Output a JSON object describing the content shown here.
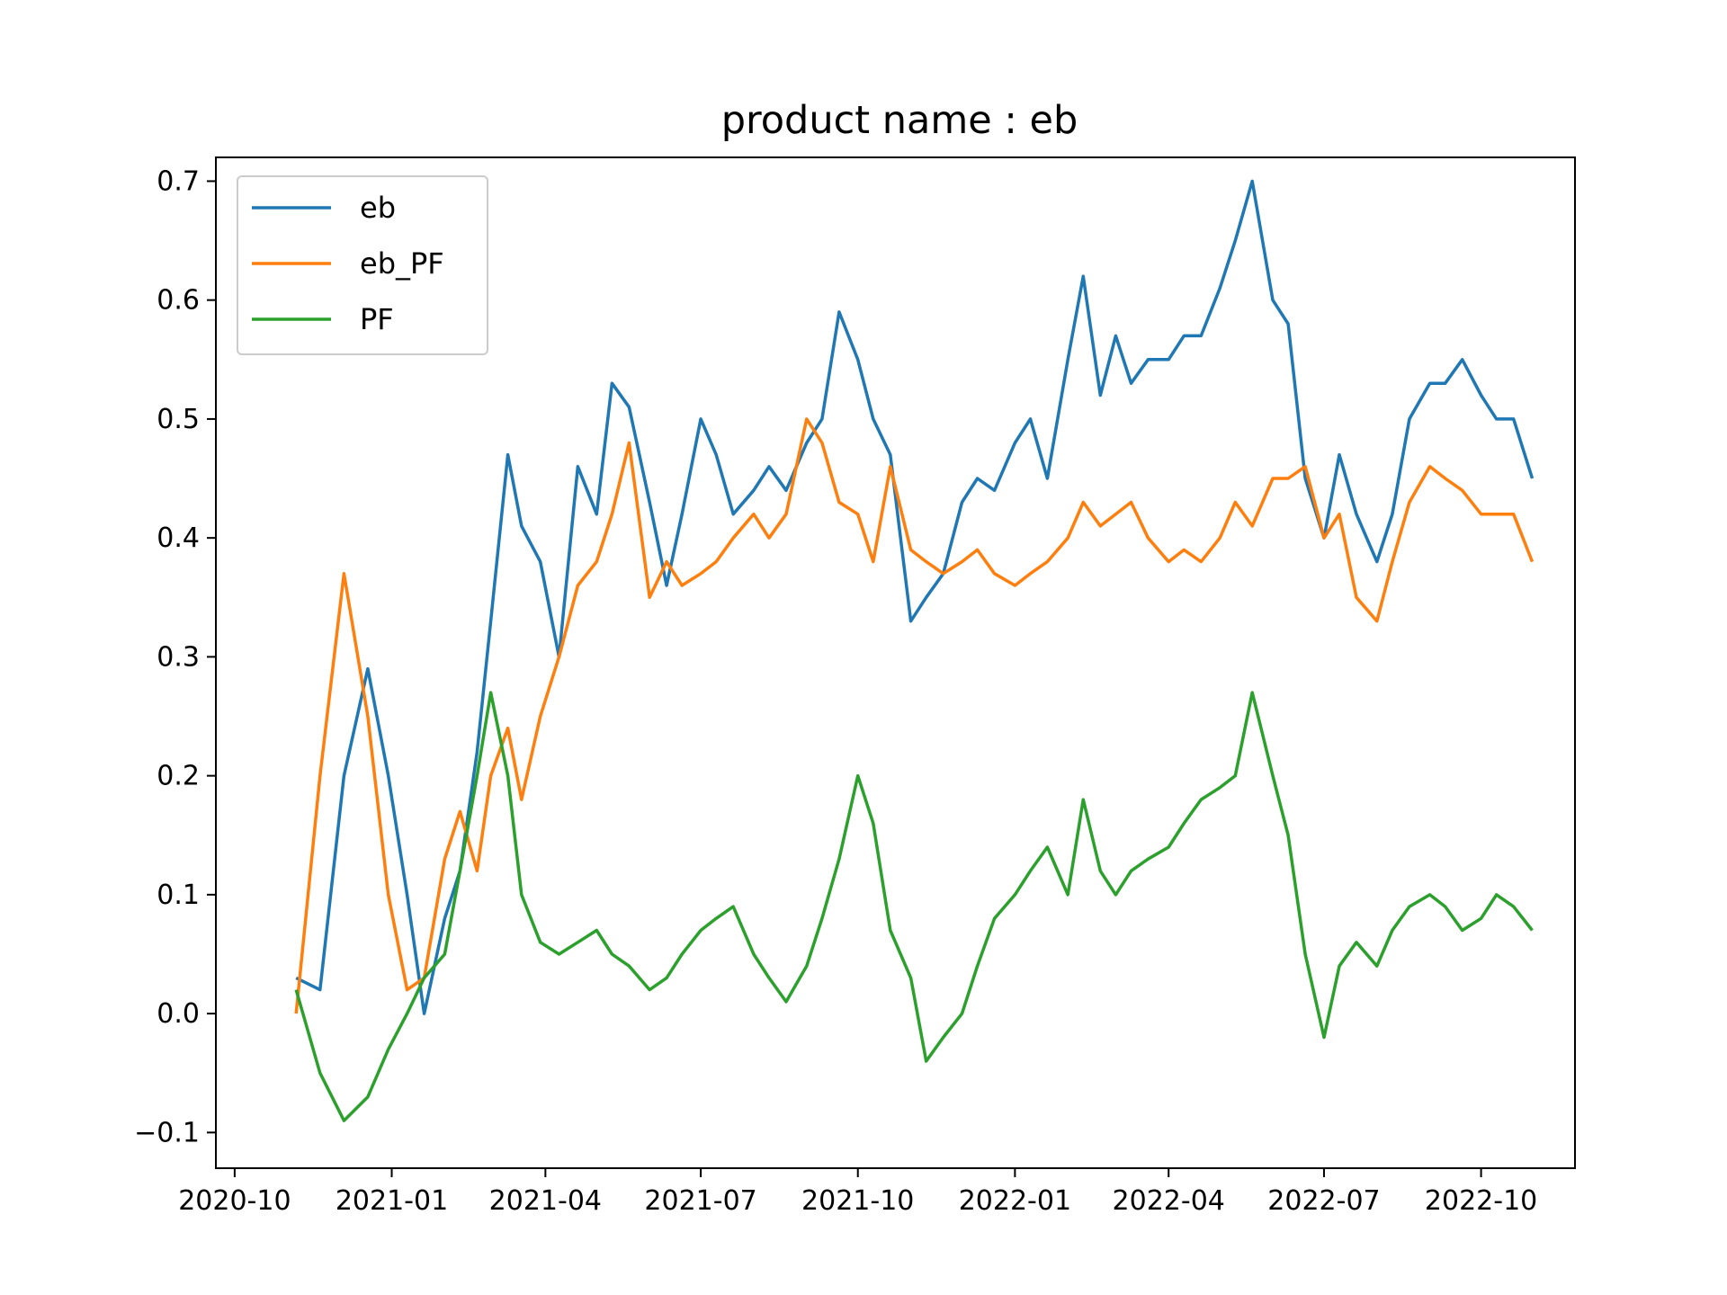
{
  "chart_data": {
    "type": "line",
    "title": "product name :    eb",
    "xlabel": "",
    "ylabel": "",
    "x_tick_labels": [
      "2020-10",
      "2021-01",
      "2021-04",
      "2021-07",
      "2021-10",
      "2022-01",
      "2022-04",
      "2022-07",
      "2022-10"
    ],
    "y_tick_labels": [
      "−0.1",
      "0.0",
      "0.1",
      "0.2",
      "0.3",
      "0.4",
      "0.5",
      "0.6",
      "0.7"
    ],
    "ylim": [
      -0.13,
      0.72
    ],
    "xlim": [
      "2020-09-20",
      "2022-11-25"
    ],
    "legend_position": "upper left",
    "colors": {
      "eb": "#1f77b4",
      "eb_PF": "#ff7f0e",
      "PF": "#2ca02c"
    },
    "series": [
      {
        "name": "eb",
        "x": [
          "2020-11-06",
          "2020-11-20",
          "2020-12-04",
          "2020-12-18",
          "2020-12-30",
          "2021-01-10",
          "2021-01-20",
          "2021-02-01",
          "2021-02-10",
          "2021-02-20",
          "2021-02-28",
          "2021-03-10",
          "2021-03-18",
          "2021-03-29",
          "2021-04-09",
          "2021-04-20",
          "2021-05-01",
          "2021-05-10",
          "2021-05-20",
          "2021-06-01",
          "2021-06-11",
          "2021-06-20",
          "2021-07-01",
          "2021-07-10",
          "2021-07-20",
          "2021-08-01",
          "2021-08-10",
          "2021-08-20",
          "2021-09-01",
          "2021-09-10",
          "2021-09-20",
          "2021-10-01",
          "2021-10-10",
          "2021-10-20",
          "2021-11-01",
          "2021-11-10",
          "2021-11-20",
          "2021-12-01",
          "2021-12-10",
          "2021-12-20",
          "2022-01-01",
          "2022-01-10",
          "2022-01-20",
          "2022-02-01",
          "2022-02-10",
          "2022-02-20",
          "2022-03-01",
          "2022-03-10",
          "2022-03-20",
          "2022-04-01",
          "2022-04-10",
          "2022-04-20",
          "2022-05-01",
          "2022-05-10",
          "2022-05-20",
          "2022-06-01",
          "2022-06-10",
          "2022-06-20",
          "2022-07-01",
          "2022-07-10",
          "2022-07-20",
          "2022-08-01",
          "2022-08-10",
          "2022-08-20",
          "2022-09-01",
          "2022-09-10",
          "2022-09-20",
          "2022-10-01",
          "2022-10-10",
          "2022-10-20",
          "2022-10-31"
        ],
        "values": [
          0.03,
          0.02,
          0.2,
          0.29,
          0.2,
          0.1,
          0.0,
          0.08,
          0.12,
          0.22,
          0.33,
          0.47,
          0.41,
          0.38,
          0.3,
          0.46,
          0.42,
          0.53,
          0.51,
          0.43,
          0.36,
          0.42,
          0.5,
          0.47,
          0.42,
          0.44,
          0.46,
          0.44,
          0.48,
          0.5,
          0.59,
          0.55,
          0.5,
          0.47,
          0.33,
          0.35,
          0.37,
          0.43,
          0.45,
          0.44,
          0.48,
          0.5,
          0.45,
          0.55,
          0.62,
          0.52,
          0.57,
          0.53,
          0.55,
          0.55,
          0.57,
          0.57,
          0.61,
          0.65,
          0.7,
          0.6,
          0.58,
          0.45,
          0.4,
          0.47,
          0.42,
          0.38,
          0.42,
          0.5,
          0.53,
          0.53,
          0.55,
          0.52,
          0.5,
          0.5,
          0.45
        ]
      },
      {
        "name": "eb_PF",
        "x": [
          "2020-11-06",
          "2020-11-20",
          "2020-12-04",
          "2020-12-18",
          "2020-12-30",
          "2021-01-10",
          "2021-01-20",
          "2021-02-01",
          "2021-02-10",
          "2021-02-20",
          "2021-02-28",
          "2021-03-10",
          "2021-03-18",
          "2021-03-29",
          "2021-04-09",
          "2021-04-20",
          "2021-05-01",
          "2021-05-10",
          "2021-05-20",
          "2021-06-01",
          "2021-06-11",
          "2021-06-20",
          "2021-07-01",
          "2021-07-10",
          "2021-07-20",
          "2021-08-01",
          "2021-08-10",
          "2021-08-20",
          "2021-09-01",
          "2021-09-10",
          "2021-09-20",
          "2021-10-01",
          "2021-10-10",
          "2021-10-20",
          "2021-11-01",
          "2021-11-10",
          "2021-11-20",
          "2021-12-01",
          "2021-12-10",
          "2021-12-20",
          "2022-01-01",
          "2022-01-10",
          "2022-01-20",
          "2022-02-01",
          "2022-02-10",
          "2022-02-20",
          "2022-03-01",
          "2022-03-10",
          "2022-03-20",
          "2022-04-01",
          "2022-04-10",
          "2022-04-20",
          "2022-05-01",
          "2022-05-10",
          "2022-05-20",
          "2022-06-01",
          "2022-06-10",
          "2022-06-20",
          "2022-07-01",
          "2022-07-10",
          "2022-07-20",
          "2022-08-01",
          "2022-08-10",
          "2022-08-20",
          "2022-09-01",
          "2022-09-10",
          "2022-09-20",
          "2022-10-01",
          "2022-10-10",
          "2022-10-20",
          "2022-10-31"
        ],
        "values": [
          0.0,
          0.2,
          0.37,
          0.25,
          0.1,
          0.02,
          0.03,
          0.13,
          0.17,
          0.12,
          0.2,
          0.24,
          0.18,
          0.25,
          0.3,
          0.36,
          0.38,
          0.42,
          0.48,
          0.35,
          0.38,
          0.36,
          0.37,
          0.38,
          0.4,
          0.42,
          0.4,
          0.42,
          0.5,
          0.48,
          0.43,
          0.42,
          0.38,
          0.46,
          0.39,
          0.38,
          0.37,
          0.38,
          0.39,
          0.37,
          0.36,
          0.37,
          0.38,
          0.4,
          0.43,
          0.41,
          0.42,
          0.43,
          0.4,
          0.38,
          0.39,
          0.38,
          0.4,
          0.43,
          0.41,
          0.45,
          0.45,
          0.46,
          0.4,
          0.42,
          0.35,
          0.33,
          0.38,
          0.43,
          0.46,
          0.45,
          0.44,
          0.42,
          0.42,
          0.42,
          0.38
        ]
      },
      {
        "name": "PF",
        "x": [
          "2020-11-06",
          "2020-11-20",
          "2020-12-04",
          "2020-12-18",
          "2020-12-30",
          "2021-01-10",
          "2021-01-20",
          "2021-02-01",
          "2021-02-10",
          "2021-02-20",
          "2021-02-28",
          "2021-03-10",
          "2021-03-18",
          "2021-03-29",
          "2021-04-09",
          "2021-04-20",
          "2021-05-01",
          "2021-05-10",
          "2021-05-20",
          "2021-06-01",
          "2021-06-11",
          "2021-06-20",
          "2021-07-01",
          "2021-07-10",
          "2021-07-20",
          "2021-08-01",
          "2021-08-10",
          "2021-08-20",
          "2021-09-01",
          "2021-09-10",
          "2021-09-20",
          "2021-10-01",
          "2021-10-10",
          "2021-10-20",
          "2021-11-01",
          "2021-11-10",
          "2021-11-20",
          "2021-12-01",
          "2021-12-10",
          "2021-12-20",
          "2022-01-01",
          "2022-01-10",
          "2022-01-20",
          "2022-02-01",
          "2022-02-10",
          "2022-02-20",
          "2022-03-01",
          "2022-03-10",
          "2022-03-20",
          "2022-04-01",
          "2022-04-10",
          "2022-04-20",
          "2022-05-01",
          "2022-05-10",
          "2022-05-20",
          "2022-06-01",
          "2022-06-10",
          "2022-06-20",
          "2022-07-01",
          "2022-07-10",
          "2022-07-20",
          "2022-08-01",
          "2022-08-10",
          "2022-08-20",
          "2022-09-01",
          "2022-09-10",
          "2022-09-20",
          "2022-10-01",
          "2022-10-10",
          "2022-10-20",
          "2022-10-31"
        ],
        "values": [
          0.02,
          -0.05,
          -0.09,
          -0.07,
          -0.03,
          0.0,
          0.03,
          0.05,
          0.12,
          0.2,
          0.27,
          0.2,
          0.1,
          0.06,
          0.05,
          0.06,
          0.07,
          0.05,
          0.04,
          0.02,
          0.03,
          0.05,
          0.07,
          0.08,
          0.09,
          0.05,
          0.03,
          0.01,
          0.04,
          0.08,
          0.13,
          0.2,
          0.16,
          0.07,
          0.03,
          -0.04,
          -0.02,
          0.0,
          0.04,
          0.08,
          0.1,
          0.12,
          0.14,
          0.1,
          0.18,
          0.12,
          0.1,
          0.12,
          0.13,
          0.14,
          0.16,
          0.18,
          0.19,
          0.2,
          0.27,
          0.2,
          0.15,
          0.05,
          -0.02,
          0.04,
          0.06,
          0.04,
          0.07,
          0.09,
          0.1,
          0.09,
          0.07,
          0.08,
          0.1,
          0.09,
          0.07
        ]
      }
    ]
  }
}
